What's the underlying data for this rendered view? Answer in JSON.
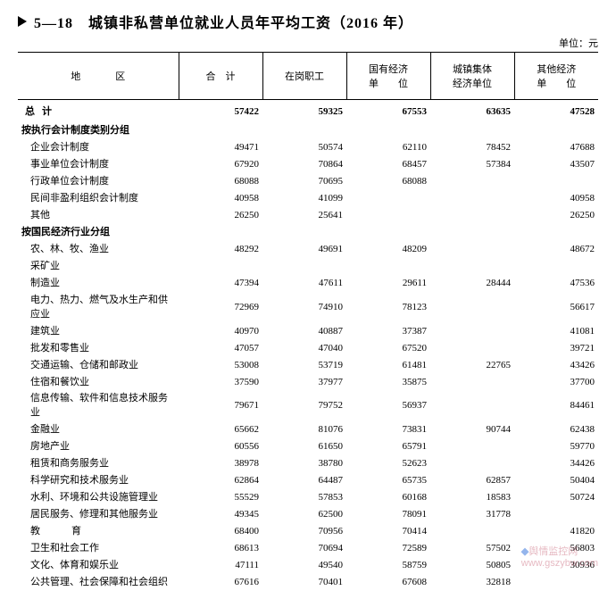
{
  "title": "5—18　城镇非私营单位就业人员年平均工资（2016 年）",
  "unit": "单位：元",
  "columns": {
    "region": "地　区",
    "total": "合　计",
    "onpost": "在岗职工",
    "state": "国有经济\n单　　位",
    "collective": "城镇集体\n经济单位",
    "other": "其他经济\n单　　位"
  },
  "total_row": {
    "label": "总计",
    "v": [
      "57422",
      "59325",
      "67553",
      "63635",
      "47528"
    ]
  },
  "sections": [
    {
      "header": "按执行会计制度类别分组",
      "rows": [
        {
          "label": "企业会计制度",
          "v": [
            "49471",
            "50574",
            "62110",
            "78452",
            "47688"
          ]
        },
        {
          "label": "事业单位会计制度",
          "v": [
            "67920",
            "70864",
            "68457",
            "57384",
            "43507"
          ]
        },
        {
          "label": "行政单位会计制度",
          "v": [
            "68088",
            "70695",
            "68088",
            "",
            ""
          ]
        },
        {
          "label": "民间非盈利组织会计制度",
          "v": [
            "40958",
            "41099",
            "",
            "",
            "40958"
          ]
        },
        {
          "label": "其他",
          "v": [
            "26250",
            "25641",
            "",
            "",
            "26250"
          ]
        }
      ]
    },
    {
      "header": "按国民经济行业分组",
      "rows": [
        {
          "label": "农、林、牧、渔业",
          "v": [
            "48292",
            "49691",
            "48209",
            "",
            "48672"
          ]
        },
        {
          "label": "采矿业",
          "v": [
            "",
            "",
            "",
            "",
            ""
          ]
        },
        {
          "label": "制造业",
          "v": [
            "47394",
            "47611",
            "29611",
            "28444",
            "47536"
          ]
        },
        {
          "label": "电力、热力、燃气及水生产和供应业",
          "v": [
            "72969",
            "74910",
            "78123",
            "",
            "56617"
          ]
        },
        {
          "label": "建筑业",
          "v": [
            "40970",
            "40887",
            "37387",
            "",
            "41081"
          ]
        },
        {
          "label": "批发和零售业",
          "v": [
            "47057",
            "47040",
            "67520",
            "",
            "39721"
          ]
        },
        {
          "label": "交通运输、仓储和邮政业",
          "v": [
            "53008",
            "53719",
            "61481",
            "22765",
            "43426"
          ]
        },
        {
          "label": "住宿和餐饮业",
          "v": [
            "37590",
            "37977",
            "35875",
            "",
            "37700"
          ]
        },
        {
          "label": "信息传输、软件和信息技术服务业",
          "v": [
            "79671",
            "79752",
            "56937",
            "",
            "84461"
          ]
        },
        {
          "label": "金融业",
          "v": [
            "65662",
            "81076",
            "73831",
            "90744",
            "62438"
          ]
        },
        {
          "label": "房地产业",
          "v": [
            "60556",
            "61650",
            "65791",
            "",
            "59770"
          ]
        },
        {
          "label": "租赁和商务服务业",
          "v": [
            "38978",
            "38780",
            "52623",
            "",
            "34426"
          ]
        },
        {
          "label": "科学研究和技术服务业",
          "v": [
            "62864",
            "64487",
            "65735",
            "62857",
            "50404"
          ]
        },
        {
          "label": "水利、环境和公共设施管理业",
          "v": [
            "55529",
            "57853",
            "60168",
            "18583",
            "50724"
          ]
        },
        {
          "label": "居民服务、修理和其他服务业",
          "v": [
            "49345",
            "62500",
            "78091",
            "31778",
            ""
          ]
        },
        {
          "label": "教　育",
          "v": [
            "68400",
            "70956",
            "70414",
            "",
            "41820"
          ],
          "spaced": true
        },
        {
          "label": "卫生和社会工作",
          "v": [
            "68613",
            "70694",
            "72589",
            "57502",
            "56803"
          ]
        },
        {
          "label": "文化、体育和娱乐业",
          "v": [
            "47111",
            "49540",
            "58759",
            "50805",
            "30936"
          ]
        },
        {
          "label": "公共管理、社会保障和社会组织",
          "v": [
            "67616",
            "70401",
            "67608",
            "32818",
            ""
          ]
        }
      ]
    }
  ],
  "watermark": {
    "text": "舆情监控网",
    "url": "www.gszybw.com"
  }
}
